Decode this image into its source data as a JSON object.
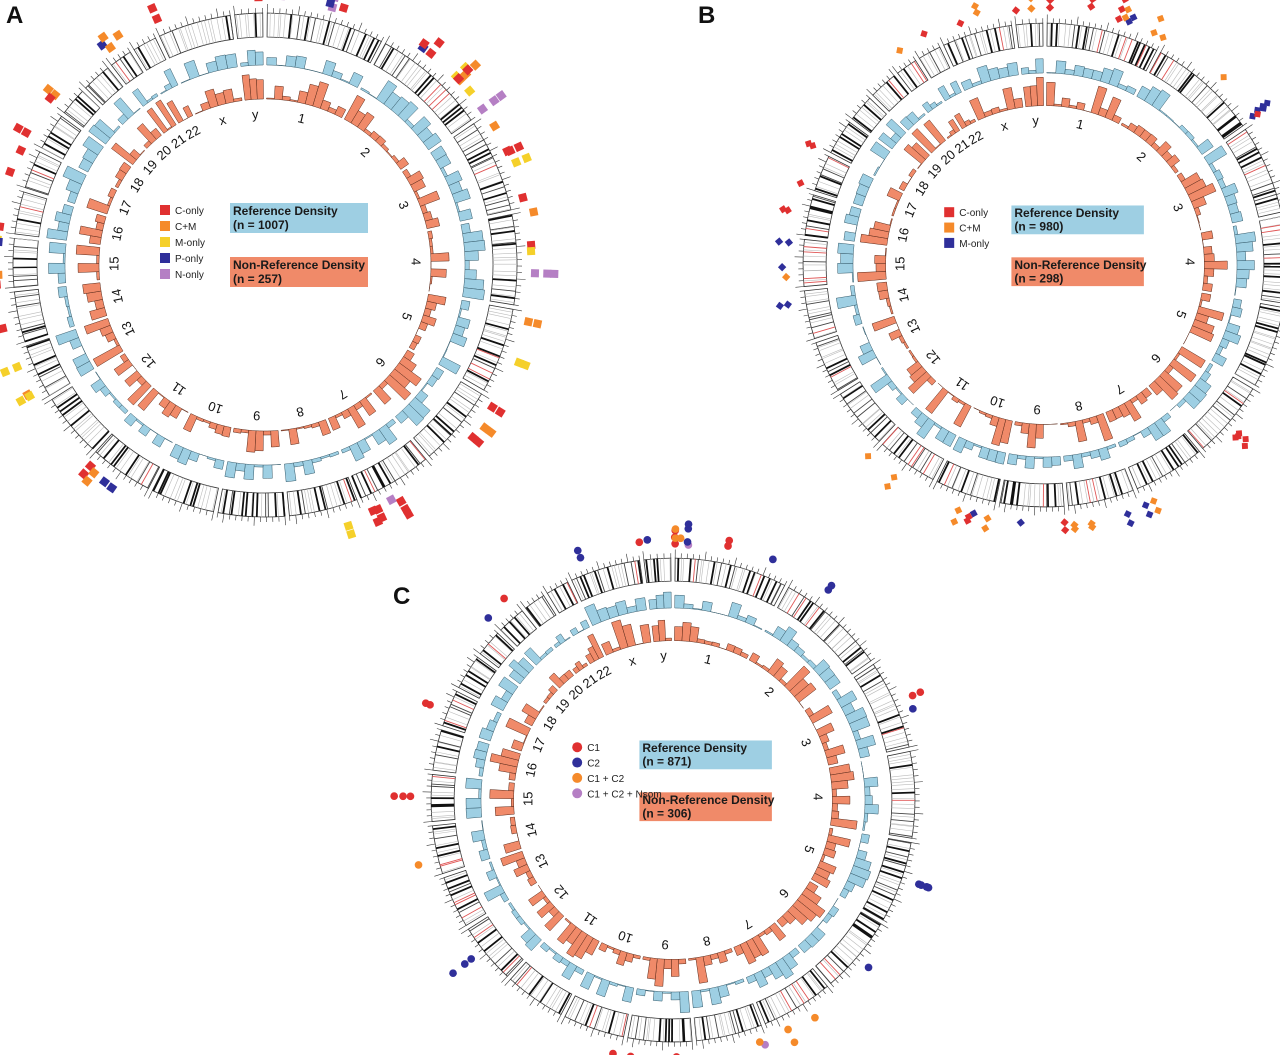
{
  "colors": {
    "reference": "#9ecfe3",
    "reference_stroke": "#355a6a",
    "nonreference": "#f08a69",
    "nonreference_stroke": "#5a2a1a",
    "ideogram_band": "#111111",
    "ideogram_red": "#e05555",
    "c_only": "#e03030",
    "c_plus_m": "#f58a2a",
    "m_only": "#f5d02a",
    "p_only": "#2f2f9a",
    "n_only": "#b57fc4",
    "c1": "#e03030",
    "c2": "#2f2f9a",
    "c1_c2": "#f58a2a",
    "c1_c2_nsom": "#b57fc4"
  },
  "chromosomes": [
    "1",
    "2",
    "3",
    "4",
    "5",
    "6",
    "7",
    "8",
    "9",
    "10",
    "11",
    "12",
    "13",
    "14",
    "15",
    "16",
    "17",
    "18",
    "19",
    "20",
    "21",
    "22",
    "x",
    "y"
  ],
  "panels": [
    {
      "letter": "A",
      "reference_label": "Reference Density",
      "reference_n": "(n = 1007)",
      "nonreference_label": "Non-Reference Density",
      "nonreference_n": "(n = 257)",
      "marker_shape": "square",
      "legend": [
        {
          "label": "C-only",
          "color_key": "c_only"
        },
        {
          "label": "C+M",
          "color_key": "c_plus_m"
        },
        {
          "label": "M-only",
          "color_key": "m_only"
        },
        {
          "label": "P-only",
          "color_key": "p_only"
        },
        {
          "label": "N-only",
          "color_key": "n_only"
        }
      ]
    },
    {
      "letter": "B",
      "reference_label": "Reference Density",
      "reference_n": "(n = 980)",
      "nonreference_label": "Non-Reference Density",
      "nonreference_n": "(n = 298)",
      "marker_shape": "diamond",
      "legend": [
        {
          "label": "C-only",
          "color_key": "c_only"
        },
        {
          "label": "C+M",
          "color_key": "c_plus_m"
        },
        {
          "label": "M-only",
          "color_key": "p_only"
        }
      ]
    },
    {
      "letter": "C",
      "reference_label": "Reference Density",
      "reference_n": "(n = 871)",
      "nonreference_label": "Non-Reference Density",
      "nonreference_n": "(n = 306)",
      "marker_shape": "circle",
      "legend": [
        {
          "label": "C1",
          "color_key": "c1"
        },
        {
          "label": "C2",
          "color_key": "c2"
        },
        {
          "label": "C1 + C2",
          "color_key": "c1_c2"
        },
        {
          "label": "C1 + C2 + Nsom",
          "color_key": "c1_c2_nsom"
        }
      ]
    }
  ]
}
